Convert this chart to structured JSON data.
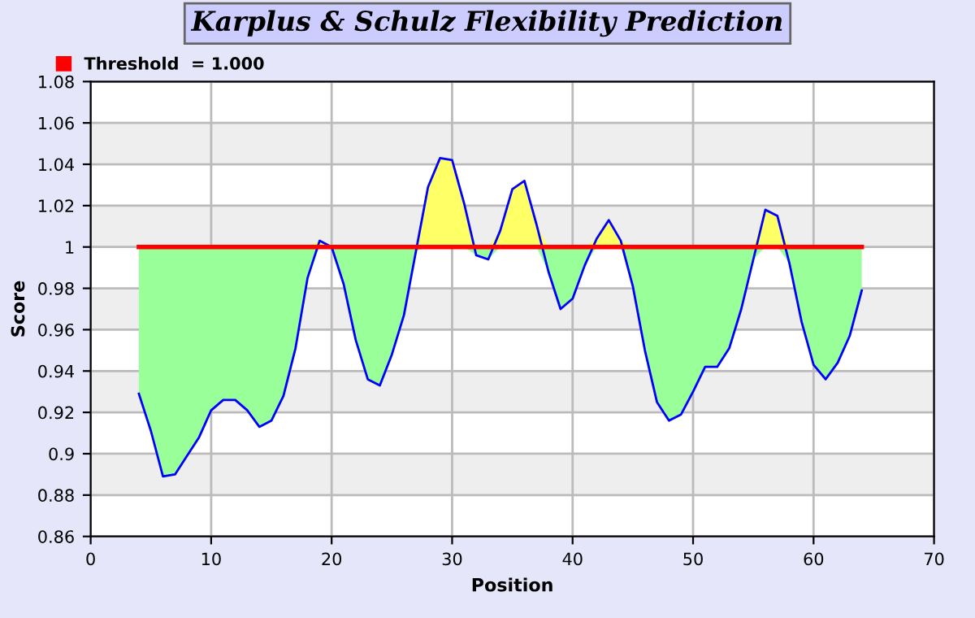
{
  "chart_data": {
    "type": "line",
    "title": "Karplus & Schulz Flexibility Prediction",
    "xlabel": "Position",
    "ylabel": "Score",
    "x": [
      4,
      5,
      6,
      7,
      8,
      9,
      10,
      11,
      12,
      13,
      14,
      15,
      16,
      17,
      18,
      19,
      20,
      21,
      22,
      23,
      24,
      25,
      26,
      27,
      28,
      29,
      30,
      31,
      32,
      33,
      34,
      35,
      36,
      37,
      38,
      39,
      40,
      41,
      42,
      43,
      44,
      45,
      46,
      47,
      48,
      49,
      50,
      51,
      52,
      53,
      54,
      55,
      56,
      57,
      58,
      59,
      60,
      61,
      62,
      63,
      64
    ],
    "series": [
      {
        "color": "#0000ff",
        "values": [
          0.929,
          0.911,
          0.889,
          0.89,
          0.899,
          0.908,
          0.921,
          0.926,
          0.926,
          0.921,
          0.913,
          0.916,
          0.928,
          0.951,
          0.985,
          1.003,
          1.0,
          0.982,
          0.955,
          0.936,
          0.933,
          0.948,
          0.967,
          0.998,
          1.029,
          1.043,
          1.042,
          1.021,
          0.996,
          0.994,
          1.008,
          1.028,
          1.032,
          1.011,
          0.988,
          0.97,
          0.975,
          0.991,
          1.004,
          1.013,
          1.003,
          0.981,
          0.95,
          0.925,
          0.916,
          0.919,
          0.93,
          0.942,
          0.942,
          0.951,
          0.97,
          0.994,
          1.018,
          1.015,
          0.992,
          0.964,
          0.943,
          0.936,
          0.944,
          0.957,
          0.979
        ],
        "lower": [
          0.929,
          0.911,
          0.889,
          0.89,
          0.899,
          0.908,
          0.921,
          0.926,
          0.926,
          0.921,
          0.913,
          0.916,
          0.928,
          0.951,
          0.985,
          1.0,
          1.0,
          0.982,
          0.955,
          0.936,
          0.933,
          0.948,
          0.967,
          0.998,
          1.0,
          1.0,
          1.0,
          1.0,
          0.996,
          0.994,
          1.0,
          1.0,
          1.0,
          1.0,
          0.988,
          0.97,
          0.975,
          0.991,
          1.0,
          1.0,
          1.0,
          0.981,
          0.95,
          0.925,
          0.916,
          0.919,
          0.93,
          0.942,
          0.942,
          0.951,
          0.97,
          0.994,
          1.0,
          1.0,
          0.992,
          0.964,
          0.943,
          0.936,
          0.944,
          0.957,
          0.979
        ],
        "upper": [
          1.0,
          1.0,
          1.0,
          1.0,
          1.0,
          1.0,
          1.0,
          1.0,
          1.0,
          1.0,
          1.0,
          1.0,
          1.0,
          1.0,
          1.0,
          1.003,
          1.0,
          1.0,
          1.0,
          1.0,
          1.0,
          1.0,
          1.0,
          1.0,
          1.029,
          1.043,
          1.042,
          1.021,
          1.0,
          1.0,
          1.008,
          1.028,
          1.032,
          1.011,
          1.0,
          1.0,
          1.0,
          1.0,
          1.004,
          1.013,
          1.003,
          1.0,
          1.0,
          1.0,
          1.0,
          1.0,
          1.0,
          1.0,
          1.0,
          1.0,
          1.0,
          1.0,
          1.018,
          1.015,
          1.0,
          1.0,
          1.0,
          1.0,
          1.0,
          1.0,
          1.0
        ]
      }
    ],
    "ref_lines": [
      {
        "axis": "y",
        "value": 1.0,
        "label": "Threshold  = 1.000",
        "color": "#ff0000"
      }
    ],
    "xlim": [
      0,
      70
    ],
    "ylim": [
      0.86,
      1.08
    ],
    "xticks": [
      0,
      10,
      20,
      30,
      40,
      50,
      60,
      70
    ],
    "yticks": [
      0.86,
      0.88,
      0.9,
      0.92,
      0.94,
      0.96,
      0.98,
      1,
      1.02,
      1.04,
      1.06,
      1.08
    ],
    "grid": true,
    "legend": "top left"
  }
}
